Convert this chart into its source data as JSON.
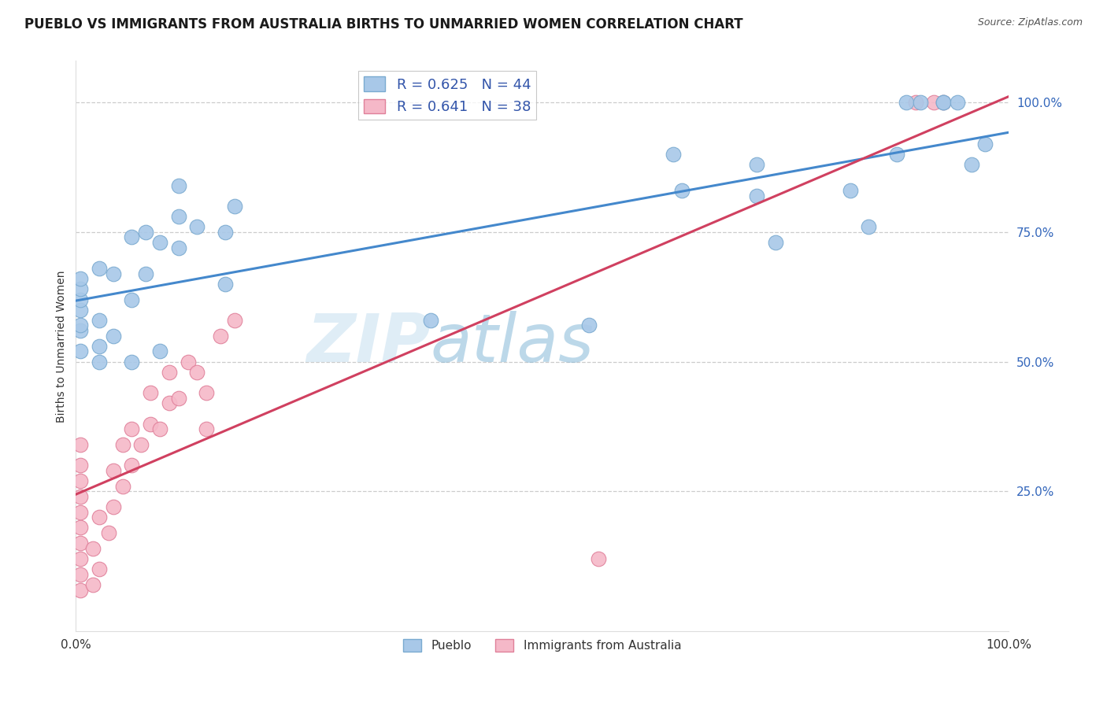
{
  "title": "PUEBLO VS IMMIGRANTS FROM AUSTRALIA BIRTHS TO UNMARRIED WOMEN CORRELATION CHART",
  "source": "Source: ZipAtlas.com",
  "ylabel": "Births to Unmarried Women",
  "xlim": [
    0.0,
    1.0
  ],
  "ylim": [
    -0.02,
    1.08
  ],
  "ytick_values": [
    0.25,
    0.5,
    0.75,
    1.0
  ],
  "pueblo_color": "#a8c8e8",
  "pueblo_edge": "#7aaad0",
  "australia_color": "#f5b8c8",
  "australia_edge": "#e0809a",
  "pueblo_R": "0.625",
  "pueblo_N": "44",
  "australia_R": "0.641",
  "australia_N": "38",
  "pueblo_line_color": "#4488cc",
  "australia_line_color": "#d04060",
  "legend_R_color": "#3355aa",
  "watermark_zip": "#c8dff0",
  "watermark_atlas": "#85b8d8",
  "grid_color": "#cccccc",
  "bg_color": "#ffffff",
  "title_fontsize": 12,
  "pueblo_x": [
    0.005,
    0.005,
    0.005,
    0.005,
    0.005,
    0.005,
    0.005,
    0.025,
    0.025,
    0.025,
    0.025,
    0.04,
    0.04,
    0.06,
    0.06,
    0.06,
    0.075,
    0.075,
    0.09,
    0.09,
    0.11,
    0.11,
    0.11,
    0.13,
    0.16,
    0.16,
    0.17,
    0.38,
    0.55,
    0.64,
    0.65,
    0.73,
    0.73,
    0.75,
    0.83,
    0.85,
    0.88,
    0.89,
    0.905,
    0.93,
    0.93,
    0.945,
    0.96,
    0.975
  ],
  "pueblo_y": [
    0.56,
    0.6,
    0.62,
    0.64,
    0.66,
    0.57,
    0.52,
    0.53,
    0.58,
    0.68,
    0.5,
    0.55,
    0.67,
    0.5,
    0.62,
    0.74,
    0.67,
    0.75,
    0.52,
    0.73,
    0.72,
    0.78,
    0.84,
    0.76,
    0.65,
    0.75,
    0.8,
    0.58,
    0.57,
    0.9,
    0.83,
    0.82,
    0.88,
    0.73,
    0.83,
    0.76,
    0.9,
    1.0,
    1.0,
    1.0,
    1.0,
    1.0,
    0.88,
    0.92
  ],
  "australia_x": [
    0.005,
    0.005,
    0.005,
    0.005,
    0.005,
    0.005,
    0.005,
    0.005,
    0.005,
    0.005,
    0.018,
    0.018,
    0.025,
    0.025,
    0.035,
    0.04,
    0.04,
    0.05,
    0.05,
    0.06,
    0.06,
    0.07,
    0.08,
    0.08,
    0.09,
    0.1,
    0.1,
    0.11,
    0.12,
    0.13,
    0.14,
    0.14,
    0.155,
    0.17,
    0.56,
    0.9,
    0.92,
    0.93
  ],
  "australia_y": [
    0.06,
    0.09,
    0.12,
    0.15,
    0.18,
    0.21,
    0.24,
    0.27,
    0.3,
    0.34,
    0.07,
    0.14,
    0.1,
    0.2,
    0.17,
    0.22,
    0.29,
    0.26,
    0.34,
    0.3,
    0.37,
    0.34,
    0.38,
    0.44,
    0.37,
    0.42,
    0.48,
    0.43,
    0.5,
    0.48,
    0.37,
    0.44,
    0.55,
    0.58,
    0.12,
    1.0,
    1.0,
    1.0
  ],
  "grid_yticks_dashed": true
}
